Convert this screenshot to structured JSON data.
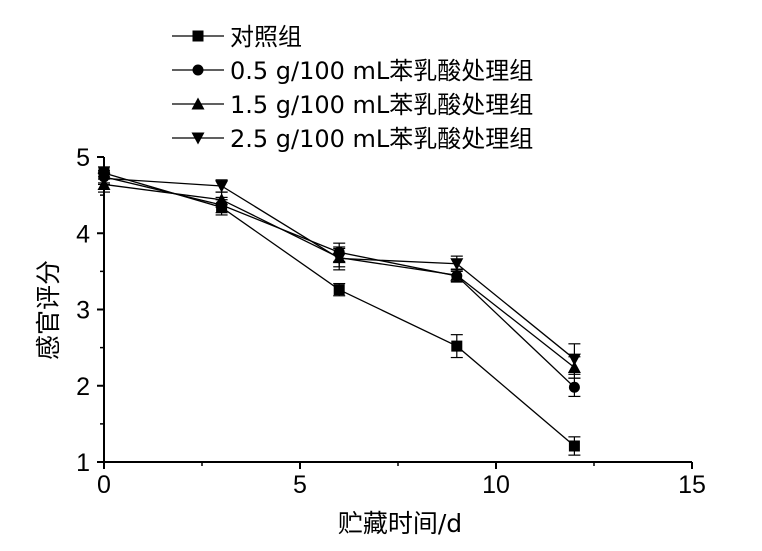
{
  "chart_data": {
    "type": "line",
    "xlabel": "贮藏时间/d",
    "ylabel": "感官评分",
    "xlim": [
      0,
      15
    ],
    "ylim": [
      1,
      5
    ],
    "xticks": [
      0,
      5,
      10,
      15
    ],
    "yticks": [
      1,
      2,
      3,
      4,
      5
    ],
    "x": [
      0,
      3,
      6,
      9,
      12
    ],
    "grid": false,
    "legend_position": "top-left",
    "series": [
      {
        "name": "对照组",
        "marker": "square",
        "values": [
          4.79,
          4.34,
          3.26,
          2.52,
          1.21
        ],
        "errors": [
          0.08,
          0.1,
          0.08,
          0.15,
          0.12
        ]
      },
      {
        "name": "0.5 g/100 mL苯乳酸处理组",
        "marker": "circle",
        "values": [
          4.74,
          4.37,
          3.75,
          3.44,
          1.98
        ],
        "errors": [
          0.08,
          0.1,
          0.12,
          0.08,
          0.12
        ]
      },
      {
        "name": "1.5 g/100 mL苯乳酸处理组",
        "marker": "triangle-up",
        "values": [
          4.64,
          4.44,
          3.68,
          3.45,
          2.24
        ],
        "errors": [
          0.1,
          0.1,
          0.12,
          0.08,
          0.14
        ]
      },
      {
        "name": "2.5 g/100 mL苯乳酸处理组",
        "marker": "triangle-down",
        "values": [
          4.72,
          4.62,
          3.67,
          3.6,
          2.35
        ],
        "errors": [
          0.08,
          0.08,
          0.15,
          0.1,
          0.2
        ]
      }
    ]
  }
}
